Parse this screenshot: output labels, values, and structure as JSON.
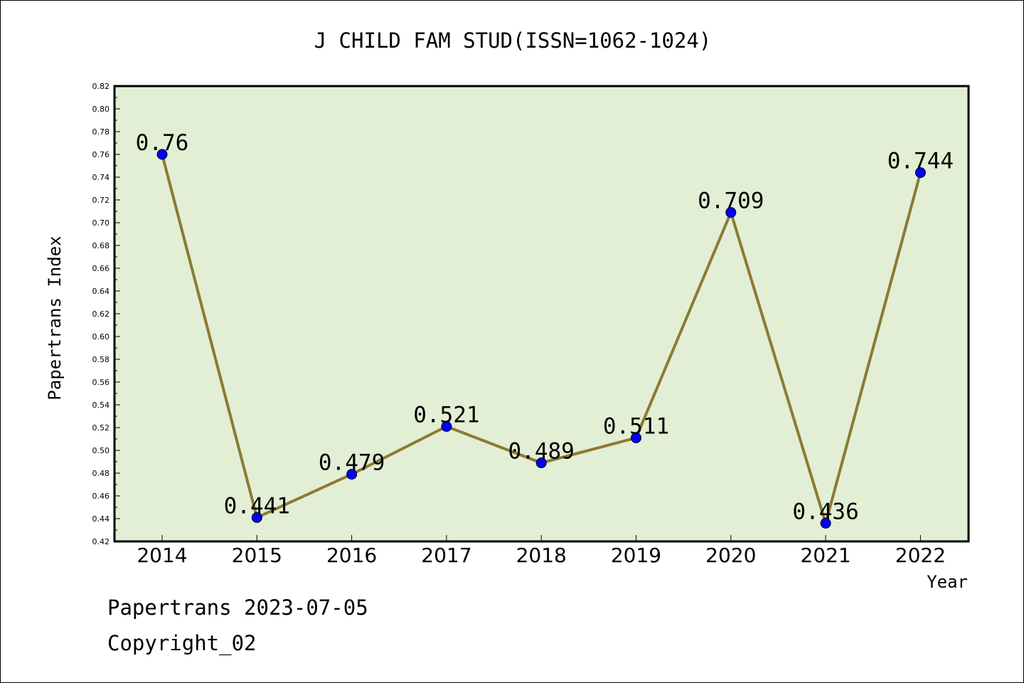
{
  "chart_data": {
    "type": "line",
    "title": "J CHILD FAM STUD(ISSN=1062-1024)",
    "xlabel": "Year",
    "ylabel": "Papertrans Index",
    "categories": [
      "2014",
      "2015",
      "2016",
      "2017",
      "2018",
      "2019",
      "2020",
      "2021",
      "2022"
    ],
    "values": [
      0.76,
      0.441,
      0.479,
      0.521,
      0.489,
      0.511,
      0.709,
      0.436,
      0.744
    ],
    "value_labels": [
      "0.76",
      "0.441",
      "0.479",
      "0.521",
      "0.489",
      "0.511",
      "0.709",
      "0.436",
      "0.744"
    ],
    "ylim": [
      0.42,
      0.82
    ],
    "y_ticks": [
      "0.42",
      "0.44",
      "0.46",
      "0.48",
      "0.50",
      "0.52",
      "0.54",
      "0.56",
      "0.58",
      "0.60",
      "0.62",
      "0.64",
      "0.66",
      "0.68",
      "0.70",
      "0.72",
      "0.74",
      "0.76",
      "0.78",
      "0.80",
      "0.82"
    ],
    "grid": false,
    "colors": {
      "plot_background": "#e2efd5",
      "line": "#8c7a35",
      "marker": "#0000ff"
    }
  },
  "footer": {
    "line1": "Papertrans 2023-07-05",
    "line2": "Copyright_02"
  }
}
